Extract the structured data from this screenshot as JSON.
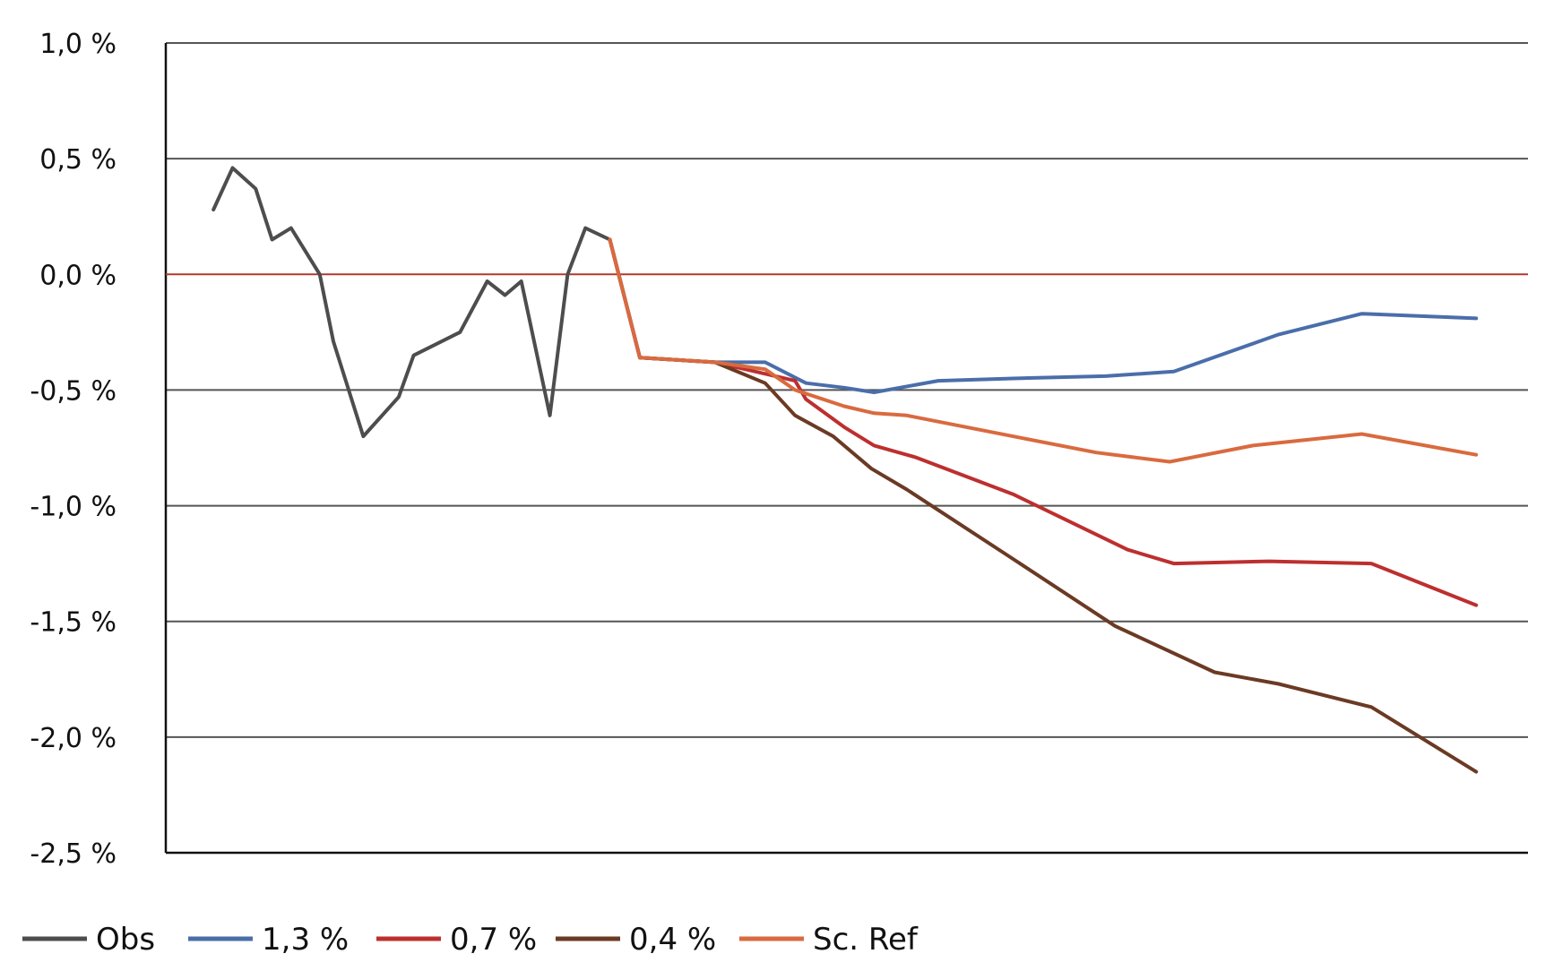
{
  "chart_data": {
    "type": "line",
    "title": "",
    "xlabel": "",
    "ylabel": "",
    "ylim": [
      -2.5,
      1.0
    ],
    "yticks": [
      1.0,
      0.5,
      0.0,
      -0.5,
      -1.0,
      -1.5,
      -2.0,
      -2.5
    ],
    "ytick_labels": [
      "1,0 %",
      "0,5 %",
      "0,0 %",
      "-0,5 %",
      "-1,0 %",
      "-1,5 %",
      "-2,0 %",
      "-2,5 %"
    ],
    "xlim": [
      0,
      100
    ],
    "grid": true,
    "zero_line_color": "#b03a2e",
    "legend_position": "bottom",
    "series": [
      {
        "name": "Obs",
        "color": "#4d4d4d",
        "points": [
          [
            3.5,
            0.28
          ],
          [
            4.9,
            0.46
          ],
          [
            6.6,
            0.37
          ],
          [
            7.8,
            0.15
          ],
          [
            9.2,
            0.2
          ],
          [
            11.3,
            0.0
          ],
          [
            12.3,
            -0.29
          ],
          [
            14.5,
            -0.7
          ],
          [
            17.1,
            -0.53
          ],
          [
            18.2,
            -0.35
          ],
          [
            21.6,
            -0.25
          ],
          [
            23.6,
            -0.03
          ],
          [
            24.9,
            -0.09
          ],
          [
            26.1,
            -0.03
          ],
          [
            28.2,
            -0.61
          ],
          [
            29.5,
            0.0
          ],
          [
            30.8,
            0.2
          ],
          [
            32.6,
            0.15
          ]
        ]
      },
      {
        "name": "1,3 %",
        "color": "#4a6eaa",
        "points": [
          [
            32.6,
            0.15
          ],
          [
            34.8,
            -0.36
          ],
          [
            40.3,
            -0.38
          ],
          [
            44.0,
            -0.38
          ],
          [
            47.0,
            -0.47
          ],
          [
            49.8,
            -0.49
          ],
          [
            52.0,
            -0.51
          ],
          [
            56.7,
            -0.46
          ],
          [
            62.2,
            -0.45
          ],
          [
            69.0,
            -0.44
          ],
          [
            74.0,
            -0.42
          ],
          [
            81.7,
            -0.26
          ],
          [
            87.8,
            -0.17
          ],
          [
            96.2,
            -0.19
          ]
        ]
      },
      {
        "name": "0,7 %",
        "color": "#bd2f2f",
        "points": [
          [
            32.6,
            0.15
          ],
          [
            34.8,
            -0.36
          ],
          [
            40.3,
            -0.38
          ],
          [
            44.0,
            -0.43
          ],
          [
            46.2,
            -0.46
          ],
          [
            47.0,
            -0.54
          ],
          [
            49.8,
            -0.66
          ],
          [
            52.0,
            -0.74
          ],
          [
            55.0,
            -0.79
          ],
          [
            62.2,
            -0.95
          ],
          [
            70.6,
            -1.19
          ],
          [
            74.0,
            -1.25
          ],
          [
            81.0,
            -1.24
          ],
          [
            88.5,
            -1.25
          ],
          [
            96.2,
            -1.43
          ]
        ]
      },
      {
        "name": "0,4 %",
        "color": "#6b3a24",
        "points": [
          [
            32.6,
            0.15
          ],
          [
            34.8,
            -0.36
          ],
          [
            40.3,
            -0.38
          ],
          [
            44.0,
            -0.47
          ],
          [
            46.2,
            -0.61
          ],
          [
            49.0,
            -0.7
          ],
          [
            51.8,
            -0.84
          ],
          [
            54.4,
            -0.93
          ],
          [
            62.2,
            -1.23
          ],
          [
            69.7,
            -1.52
          ],
          [
            77.0,
            -1.72
          ],
          [
            81.7,
            -1.77
          ],
          [
            88.5,
            -1.87
          ],
          [
            96.2,
            -2.15
          ]
        ]
      },
      {
        "name": "Sc. Ref",
        "color": "#d96a3f",
        "points": [
          [
            32.6,
            0.15
          ],
          [
            34.8,
            -0.36
          ],
          [
            40.3,
            -0.38
          ],
          [
            44.0,
            -0.41
          ],
          [
            46.2,
            -0.5
          ],
          [
            49.8,
            -0.57
          ],
          [
            52.0,
            -0.6
          ],
          [
            54.4,
            -0.61
          ],
          [
            62.2,
            -0.7
          ],
          [
            68.3,
            -0.77
          ],
          [
            73.7,
            -0.81
          ],
          [
            79.8,
            -0.74
          ],
          [
            87.8,
            -0.69
          ],
          [
            96.2,
            -0.78
          ]
        ]
      }
    ]
  }
}
